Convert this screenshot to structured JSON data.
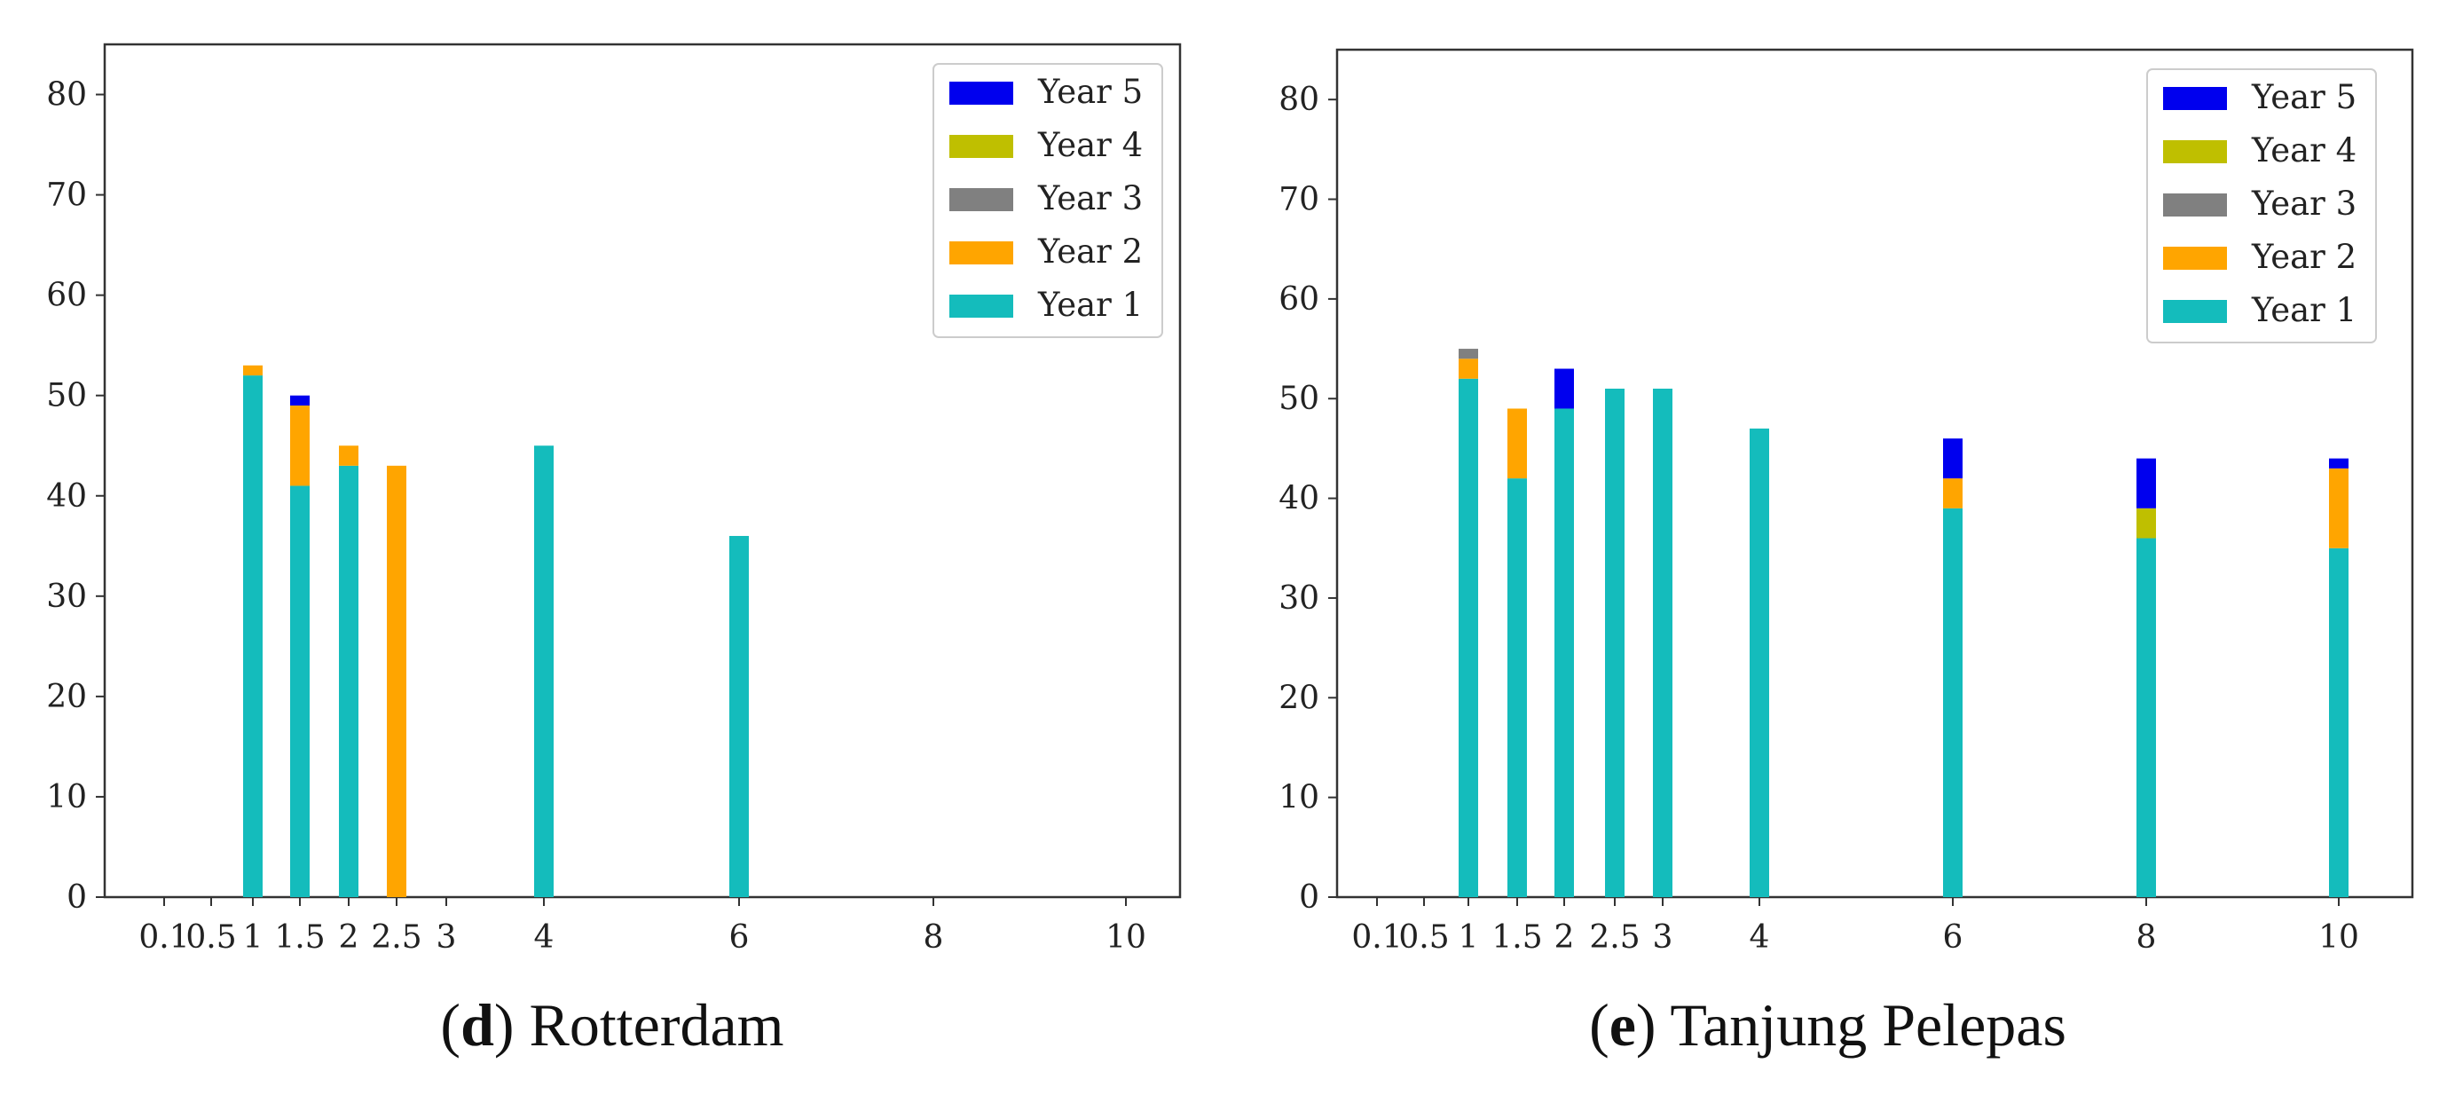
{
  "chart_data": [
    {
      "type": "bar",
      "stacked": true,
      "caption_letter": "d",
      "caption_text": ") Rotterdam",
      "caption_open": "(",
      "x": [
        1,
        1.5,
        2,
        2.5,
        4,
        6
      ],
      "xticks": [
        "0.1",
        "0.5",
        "1",
        "1.5",
        "2",
        "2.5",
        "3",
        "4",
        "6",
        "8",
        "10"
      ],
      "ylim": [
        0,
        85
      ],
      "yticks": [
        "0",
        "10",
        "20",
        "30",
        "40",
        "50",
        "60",
        "70",
        "80"
      ],
      "legend_position": "top-right",
      "series": [
        {
          "name": "Year 1",
          "color": "#14bcbc",
          "values": [
            52,
            41,
            43,
            0,
            45,
            36
          ]
        },
        {
          "name": "Year 2",
          "color": "#ffa500",
          "values": [
            1,
            8,
            2,
            43,
            0,
            0
          ]
        },
        {
          "name": "Year 3",
          "color": "#808080",
          "values": [
            0,
            0,
            0,
            0,
            0,
            0
          ]
        },
        {
          "name": "Year 4",
          "color": "#bfbf00",
          "values": [
            0,
            0,
            0,
            0,
            0,
            0
          ]
        },
        {
          "name": "Year 5",
          "color": "#0000ee",
          "values": [
            0,
            1,
            0,
            0,
            0,
            0
          ]
        }
      ]
    },
    {
      "type": "bar",
      "stacked": true,
      "caption_letter": "e",
      "caption_text": ") Tanjung Pelepas",
      "caption_open": "(",
      "x": [
        1,
        1.5,
        2,
        2.5,
        3,
        4,
        6,
        8,
        10
      ],
      "xticks": [
        "0.1",
        "0.5",
        "1",
        "1.5",
        "2",
        "2.5",
        "3",
        "4",
        "6",
        "8",
        "10"
      ],
      "ylim": [
        0,
        85
      ],
      "yticks": [
        "0",
        "10",
        "20",
        "30",
        "40",
        "50",
        "60",
        "70",
        "80"
      ],
      "legend_position": "top-right",
      "series": [
        {
          "name": "Year 1",
          "color": "#14bcbc",
          "values": [
            52,
            42,
            49,
            51,
            51,
            47,
            39,
            36,
            35
          ]
        },
        {
          "name": "Year 2",
          "color": "#ffa500",
          "values": [
            2,
            7,
            0,
            0,
            0,
            0,
            3,
            0,
            8
          ]
        },
        {
          "name": "Year 3",
          "color": "#808080",
          "values": [
            1,
            0,
            0,
            0,
            0,
            0,
            0,
            0,
            0
          ]
        },
        {
          "name": "Year 4",
          "color": "#bfbf00",
          "values": [
            0,
            0,
            0,
            0,
            0,
            0,
            0,
            3,
            0
          ]
        },
        {
          "name": "Year 5",
          "color": "#0000ee",
          "values": [
            0,
            0,
            4,
            0,
            0,
            0,
            4,
            5,
            1
          ]
        }
      ]
    }
  ]
}
